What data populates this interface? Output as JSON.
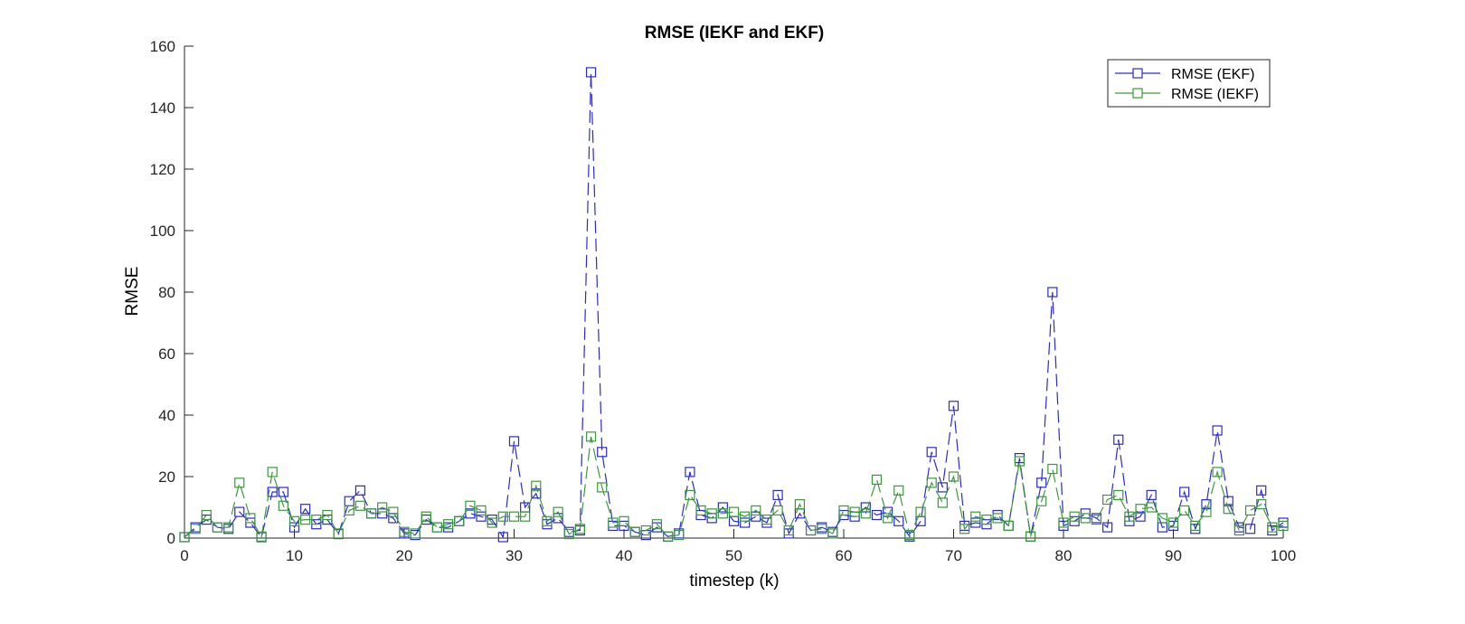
{
  "chart_data": {
    "type": "line",
    "title": "RMSE (IEKF and EKF)",
    "xlabel": "timestep (k)",
    "ylabel": "RMSE",
    "xlim": [
      0,
      100
    ],
    "ylim": [
      0,
      160
    ],
    "xticks": [
      0,
      10,
      20,
      30,
      40,
      50,
      60,
      70,
      80,
      90,
      100
    ],
    "yticks": [
      0,
      20,
      40,
      60,
      80,
      100,
      120,
      140,
      160
    ],
    "legend_position": "top-right",
    "grid": false,
    "x": [
      0,
      1,
      2,
      3,
      4,
      5,
      6,
      7,
      8,
      9,
      10,
      11,
      12,
      13,
      14,
      15,
      16,
      17,
      18,
      19,
      20,
      21,
      22,
      23,
      24,
      25,
      26,
      27,
      28,
      29,
      30,
      31,
      32,
      33,
      34,
      35,
      36,
      37,
      38,
      39,
      40,
      41,
      42,
      43,
      44,
      45,
      46,
      47,
      48,
      49,
      50,
      51,
      52,
      53,
      54,
      55,
      56,
      57,
      58,
      59,
      60,
      61,
      62,
      63,
      64,
      65,
      66,
      67,
      68,
      69,
      70,
      71,
      72,
      73,
      74,
      75,
      76,
      77,
      78,
      79,
      80,
      81,
      82,
      83,
      84,
      85,
      86,
      87,
      88,
      89,
      90,
      91,
      92,
      93,
      94,
      95,
      96,
      97,
      98,
      99,
      100
    ],
    "series": [
      {
        "name": "RMSE (EKF)",
        "color": "#2a2adc",
        "marker": "square",
        "values": [
          0.3,
          3.5,
          6,
          3.5,
          3,
          8.5,
          5,
          0.3,
          15,
          15,
          3.5,
          9.5,
          4.5,
          6,
          1.3,
          12,
          15.5,
          8,
          8,
          6.5,
          1.5,
          1,
          6,
          3.5,
          3.5,
          5.5,
          8,
          7,
          6,
          0.3,
          31.5,
          10,
          14.5,
          4.5,
          6.5,
          2,
          2.5,
          151.5,
          28,
          4,
          4,
          2,
          1,
          3.5,
          0.5,
          1.5,
          21.5,
          7.5,
          6.5,
          10,
          5.5,
          5,
          7,
          5,
          14,
          1.5,
          8,
          2.5,
          3.5,
          2,
          7.5,
          7,
          10,
          7.5,
          8.5,
          5.5,
          0.5,
          5.5,
          28,
          16.5,
          43,
          4,
          5,
          4.5,
          7.5,
          4,
          26,
          0.5,
          18,
          80,
          4,
          5.5,
          8,
          6.5,
          3.5,
          32,
          5.5,
          7,
          14,
          3.5,
          4,
          15,
          3,
          11,
          35,
          12,
          3.5,
          3,
          15.5,
          2.5,
          5
        ]
      },
      {
        "name": "RMSE (IEKF)",
        "color": "#3a9a3a",
        "marker": "square",
        "values": [
          0.3,
          3,
          7.5,
          3.5,
          3.5,
          18,
          6.5,
          0.5,
          21.5,
          10.5,
          5.5,
          6,
          6,
          7.5,
          1.5,
          9,
          10.5,
          8,
          10,
          8.5,
          2,
          1.5,
          7,
          3.5,
          4.5,
          5.5,
          10.5,
          9,
          5,
          7,
          7,
          7,
          17,
          5.5,
          8.5,
          1.3,
          3,
          33,
          16.5,
          5,
          5.5,
          2,
          2.5,
          4.5,
          0.5,
          1,
          14,
          9,
          8,
          8,
          8.5,
          7,
          9,
          6,
          9,
          2.5,
          11,
          2.5,
          3,
          1.5,
          9,
          8.5,
          8,
          19,
          6.5,
          15.5,
          1,
          8.5,
          18,
          11.5,
          20,
          3,
          7,
          6,
          6.5,
          4,
          25,
          0.5,
          12,
          22.5,
          5,
          7,
          6.5,
          6,
          12.5,
          14,
          7,
          9.5,
          10,
          6.5,
          5,
          9,
          4,
          8.5,
          21.5,
          9.5,
          2.5,
          9,
          11,
          3.5,
          4
        ]
      }
    ]
  }
}
